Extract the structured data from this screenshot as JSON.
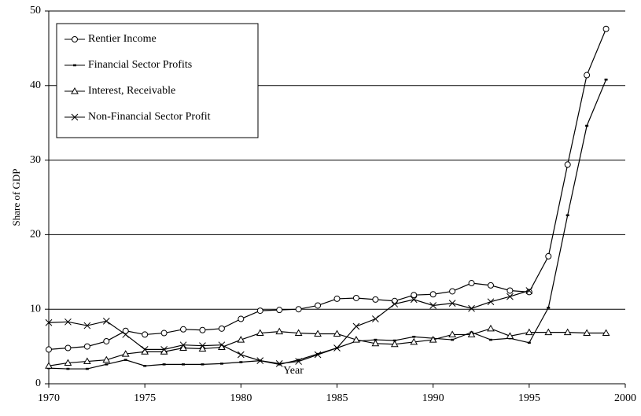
{
  "chart_data": {
    "type": "line",
    "x_label": "Year",
    "y_label": "Share of GDP",
    "x": [
      1970,
      1971,
      1972,
      1973,
      1974,
      1975,
      1976,
      1977,
      1978,
      1979,
      1980,
      1981,
      1982,
      1983,
      1984,
      1985,
      1986,
      1987,
      1988,
      1989,
      1990,
      1991,
      1992,
      1993,
      1994,
      1995,
      1996,
      1997,
      1998,
      1999
    ],
    "series": [
      {
        "name": "Rentier Income",
        "color": "#000000",
        "marker": "circle",
        "values": [
          4.6,
          4.8,
          5.0,
          5.7,
          7.1,
          6.6,
          6.8,
          7.3,
          7.2,
          7.4,
          8.7,
          9.8,
          9.9,
          10.0,
          10.5,
          11.4,
          11.5,
          11.3,
          11.1,
          11.9,
          12.0,
          12.4,
          13.5,
          13.2,
          12.5,
          12.3,
          17.1,
          29.4,
          41.4,
          47.6
        ]
      },
      {
        "name": "Financial Sector Profits",
        "color": "#000000",
        "marker": "dash",
        "values": [
          2.1,
          2.0,
          2.0,
          2.6,
          3.2,
          2.4,
          2.6,
          2.6,
          2.6,
          2.7,
          2.9,
          3.1,
          2.6,
          3.2,
          4.0,
          4.8,
          5.7,
          5.9,
          5.8,
          6.3,
          6.1,
          5.9,
          6.9,
          5.9,
          6.1,
          5.5,
          10.2,
          22.6,
          34.6,
          40.8
        ]
      },
      {
        "name": "Interest, Receivable",
        "color": "#000000",
        "marker": "triangle",
        "values": [
          2.4,
          2.8,
          3.0,
          3.2,
          4.0,
          4.3,
          4.3,
          4.8,
          4.7,
          4.9,
          5.9,
          6.8,
          7.0,
          6.8,
          6.7,
          6.7,
          5.9,
          5.4,
          5.3,
          5.6,
          5.9,
          6.6,
          6.6,
          7.4,
          6.4,
          6.9,
          6.9,
          6.9,
          6.8,
          6.8
        ]
      },
      {
        "name": "Non-Financial Sector Profit",
        "color": "#000000",
        "marker": "x",
        "values": [
          8.2,
          8.3,
          7.8,
          8.4,
          6.6,
          4.6,
          4.6,
          5.2,
          5.1,
          5.2,
          3.9,
          3.1,
          2.7,
          3.0,
          3.9,
          4.8,
          7.7,
          8.7,
          10.7,
          11.3,
          10.5,
          10.8,
          10.1,
          11.0,
          11.7,
          12.5,
          null,
          null,
          null,
          null
        ]
      }
    ],
    "xlim": [
      1970,
      2000
    ],
    "xticks": [
      1970,
      1975,
      1980,
      1985,
      1990,
      1995,
      2000
    ],
    "ylim": [
      0,
      50
    ],
    "yticks": [
      0,
      10,
      20,
      30,
      40,
      50
    ],
    "grid": true,
    "legend": "upper left"
  }
}
